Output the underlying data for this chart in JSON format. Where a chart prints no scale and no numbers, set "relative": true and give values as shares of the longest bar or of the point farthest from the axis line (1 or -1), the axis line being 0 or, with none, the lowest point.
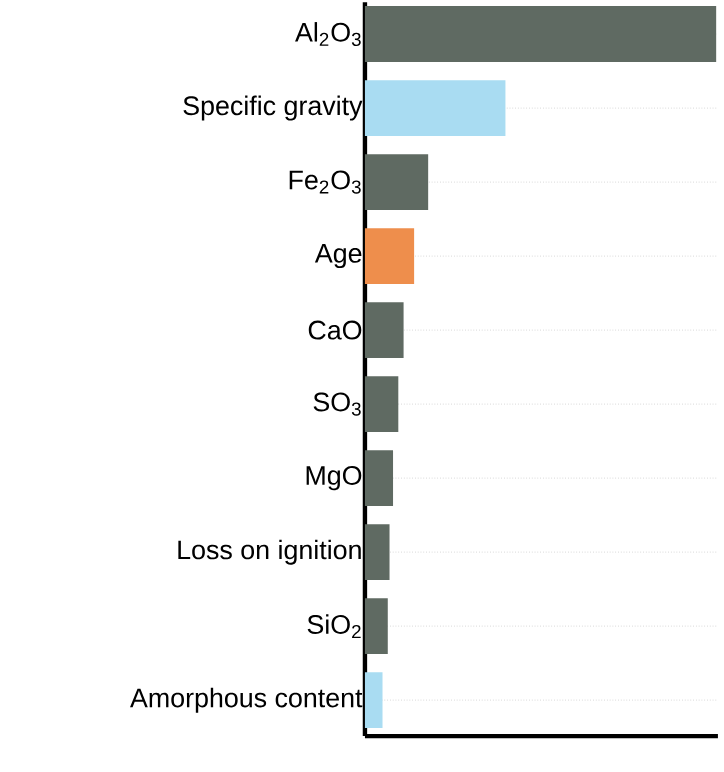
{
  "chart_data": {
    "type": "bar",
    "orientation": "horizontal",
    "relative": true,
    "grid": "y",
    "categories": [
      "Al$_{2}$O$_{3}$",
      "Specific gravity",
      "Fe$_{2}$O$_{3}$",
      "Age",
      "CaO",
      "SO$_{3}$",
      "MgO",
      "Loss on ignition",
      "SiO$_{2}$",
      "Amorphous content"
    ],
    "values": [
      1,
      0.4,
      0.18,
      0.14,
      0.11,
      0.095,
      0.08,
      0.07,
      0.065,
      0.05
    ],
    "colors": [
      "#5f6a62",
      "#a9dcf2",
      "#5f6a62",
      "#ee8e4c",
      "#5f6a62",
      "#5f6a62",
      "#5f6a62",
      "#5f6a62",
      "#5f6a62",
      "#a9dcf2"
    ]
  }
}
